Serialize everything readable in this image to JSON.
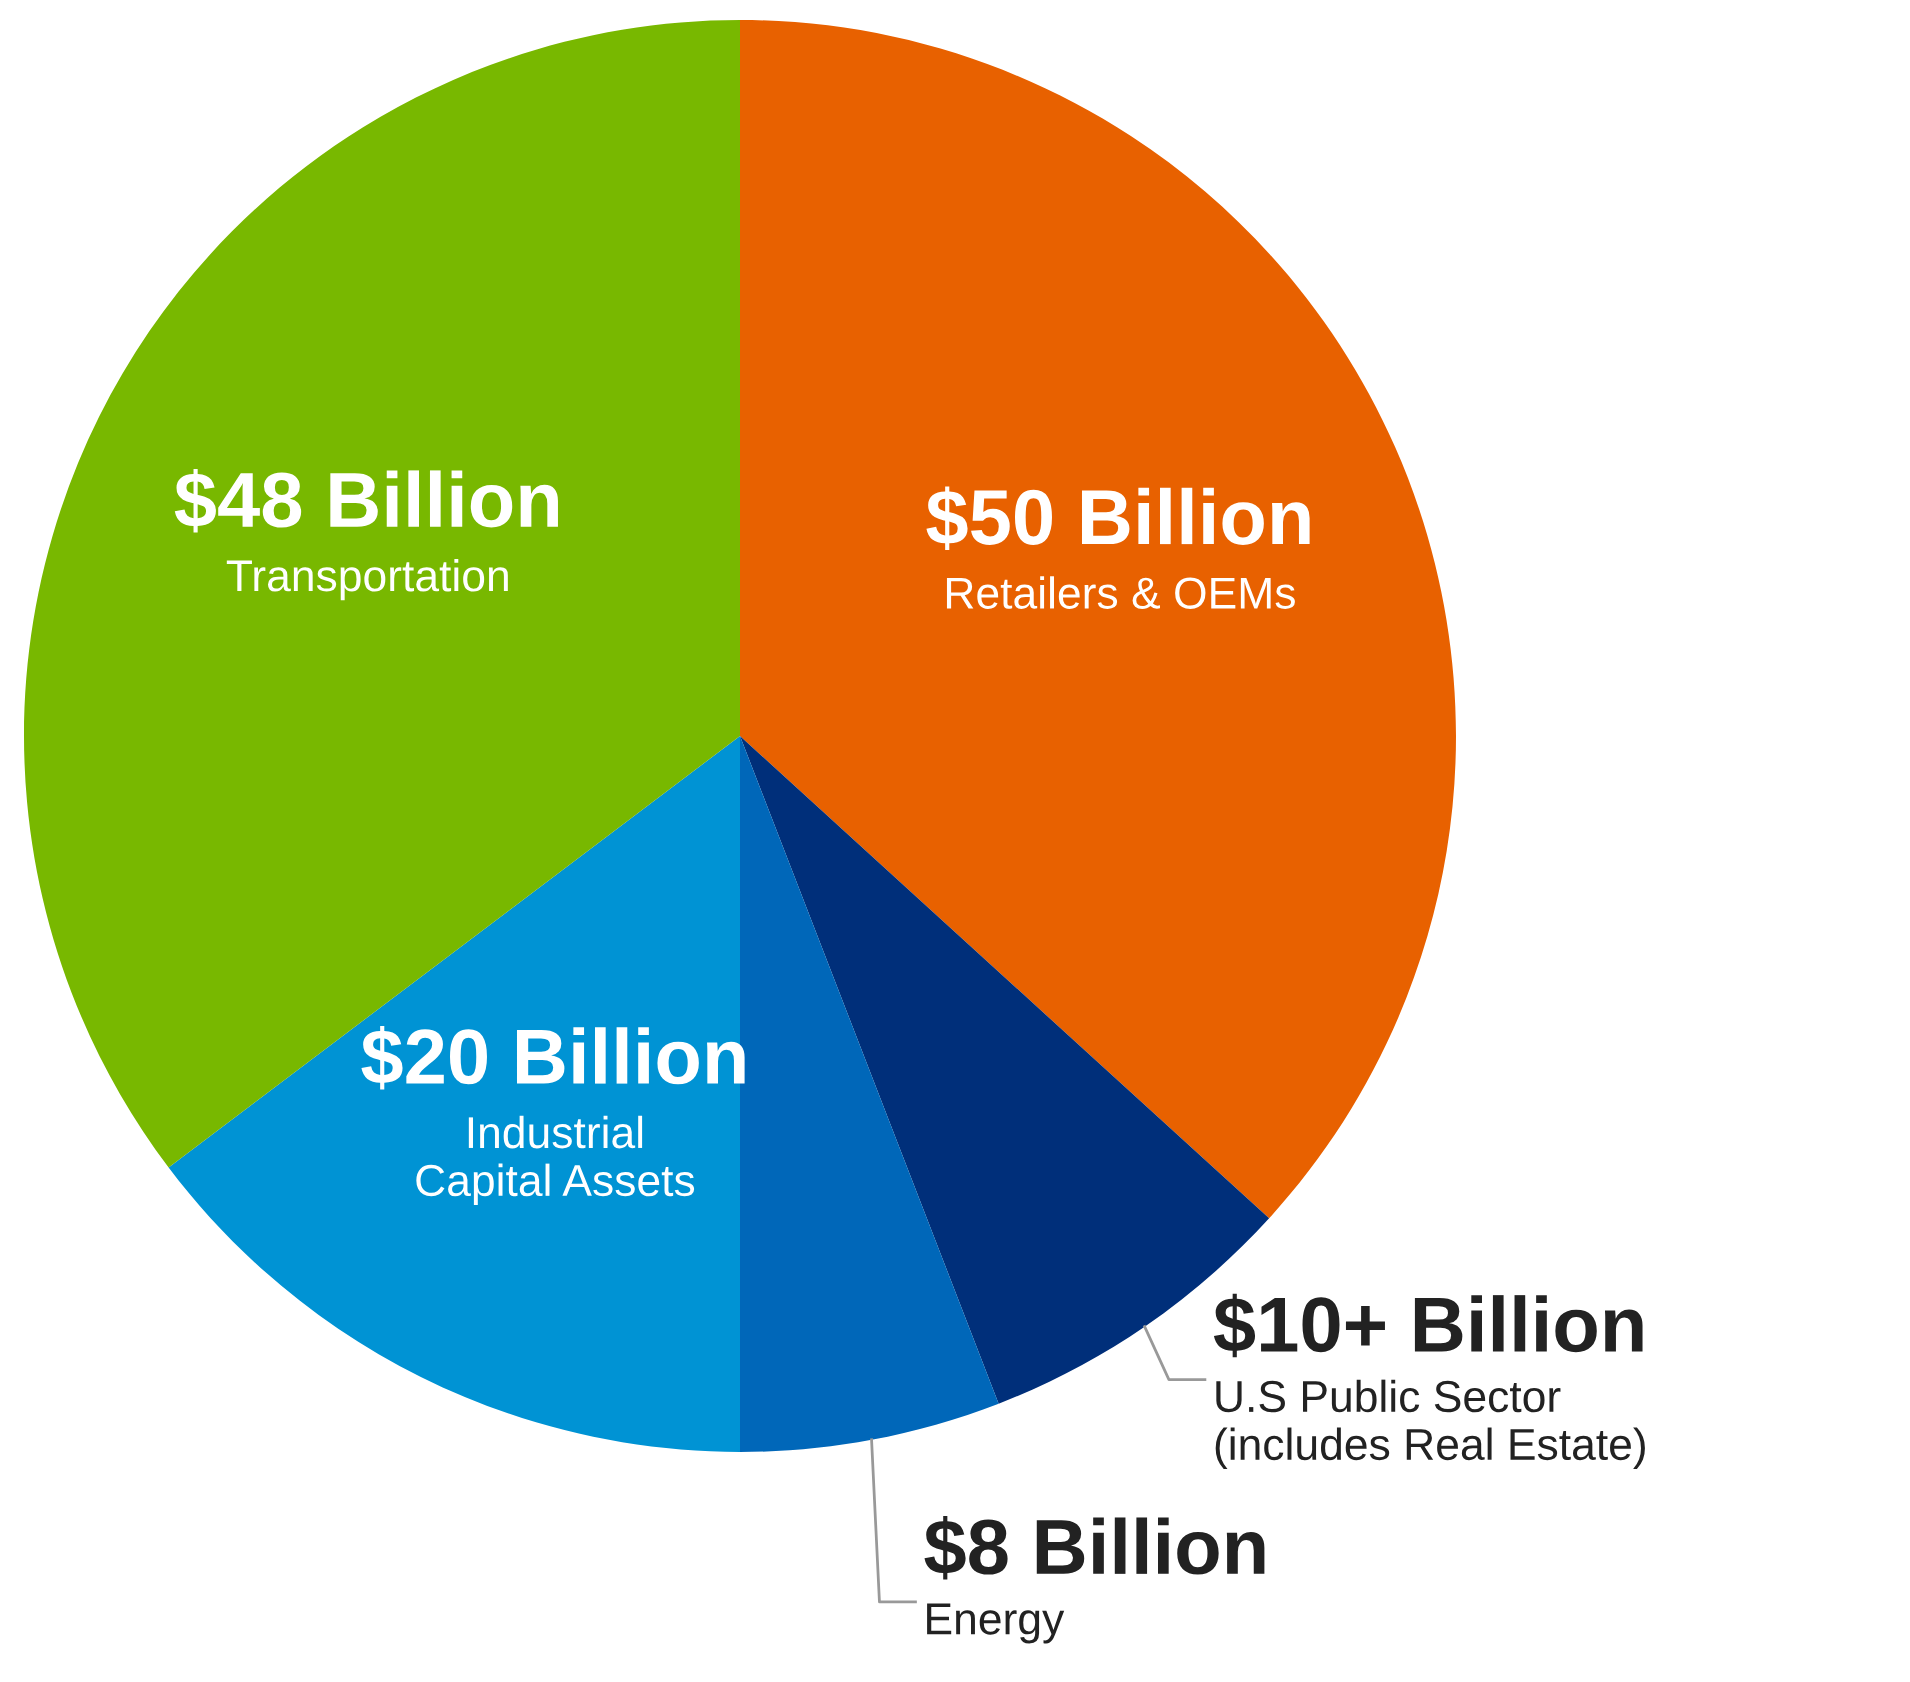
{
  "chart_data": {
    "type": "pie",
    "categories": [
      "Retailers & OEMs",
      "U.S Public Sector\n(includes Real Estate)",
      "Energy",
      "Industrial\nCapital Assets",
      "Transportation"
    ],
    "values": [
      50,
      10,
      8,
      20,
      48
    ],
    "value_labels": [
      "$50 Billion",
      "$10+ Billion",
      "$8 Billion",
      "$20 Billion",
      "$48 Billion"
    ],
    "colors": [
      "#e86100",
      "#002f7a",
      "#0067b9",
      "#0093d4",
      "#78b800"
    ],
    "legend": false
  }
}
